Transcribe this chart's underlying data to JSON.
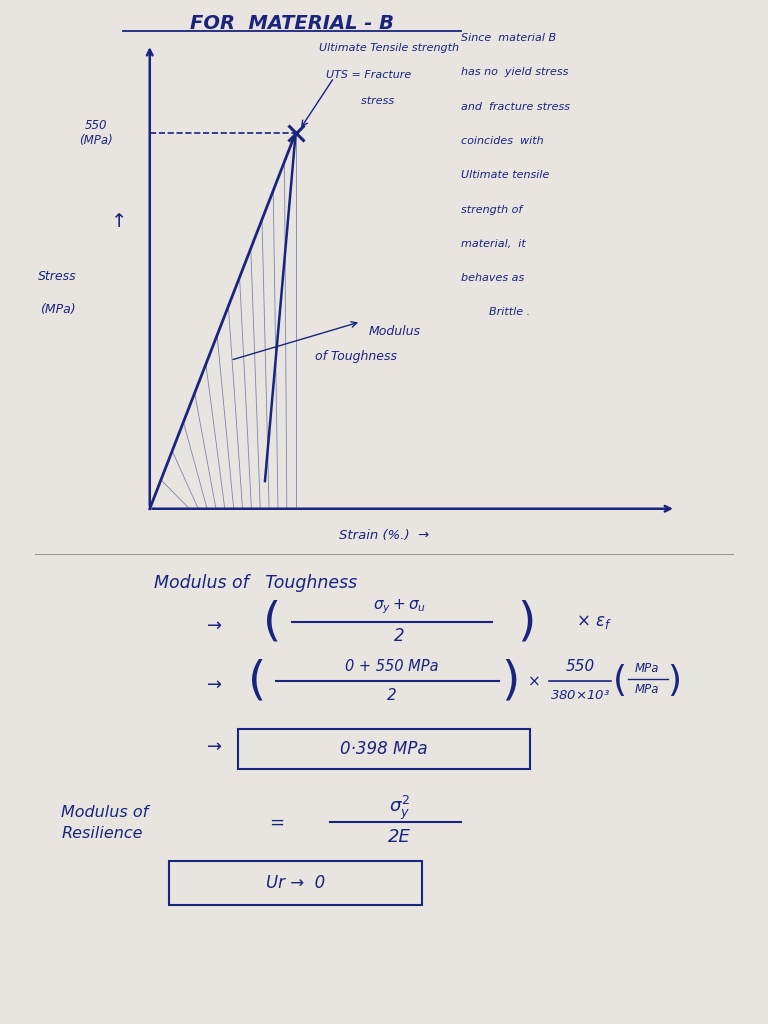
{
  "background_color": "#e8e5e0",
  "paper_color": "#ede9e3",
  "text_color": "#1a237e",
  "title": "FOR  MATERIAL - B",
  "uts_value": "550\n(MPa)",
  "uts_label_line1": "Ultimate Tensile strength",
  "uts_label_line2": "UTS = Fracture",
  "uts_label_line3": "          stress",
  "stress_label_line1": "Stress",
  "stress_label_line2": "(MPa)",
  "strain_label": "Strain (%.)",
  "toughness_arrow_label_line1": "Modulus",
  "toughness_arrow_label_line2": "of Toughness",
  "annotation_right_lines": [
    "Since  material B",
    "has no  yield stress",
    "and  fracture stress",
    "coincides  with",
    "Ultimate tensile",
    "strength of",
    "material,  it",
    "behaves as",
    "        Brittle ."
  ],
  "section2_title": "Modulus of   Toughness",
  "result1": "0·398 MPa",
  "result2": "Ur →  0"
}
